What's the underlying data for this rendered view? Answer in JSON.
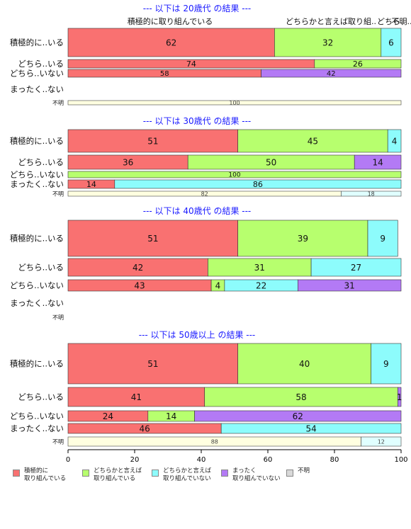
{
  "chart_data": {
    "type": "bar",
    "orientation": "horizontal",
    "stacked": true,
    "xlim": [
      0,
      100
    ],
    "xticks": [
      0,
      20,
      40,
      60,
      80,
      100
    ],
    "grid": false,
    "legend_position": "bottom",
    "series": [
      {
        "name": "積極的に\n取り組んでいる",
        "color": "#f97171"
      },
      {
        "name": "どちらかと言えば\n取り組んでいる",
        "color": "#b7ff6e"
      },
      {
        "name": "どちらかと言えば\n取り組んでいない",
        "color": "#8dfcfc"
      },
      {
        "name": "まったく\n取り組んでいない",
        "color": "#b37af5"
      },
      {
        "name": "不明",
        "color": "#d9d9d9"
      }
    ],
    "panels": [
      {
        "title": "--- 以下は 20歳代 の結果 ---",
        "top_labels": [
          "積極的に取り組んでいる",
          "どちらかと言えば取り組..",
          "どちら..",
          "不明.."
        ],
        "rows": [
          {
            "label": "積極的に..いる",
            "values": [
              62,
              32,
              6,
              0,
              0
            ]
          },
          {
            "label": "どちら..いる",
            "values": [
              74,
              26,
              0,
              0,
              0
            ]
          },
          {
            "label": "どちら..いない",
            "values": [
              58,
              0,
              0,
              42,
              0
            ]
          },
          {
            "label": "まったく..ない",
            "values": [
              0,
              0,
              0,
              0,
              0
            ]
          }
        ],
        "unknown": {
          "label": "不明",
          "values": [
            0,
            100
          ]
        }
      },
      {
        "title": "--- 以下は 30歳代 の結果 ---",
        "rows": [
          {
            "label": "積極的に..いる",
            "values": [
              51,
              45,
              4,
              0,
              0
            ]
          },
          {
            "label": "どちら..いる",
            "values": [
              36,
              50,
              0,
              14,
              0
            ]
          },
          {
            "label": "どちら..いない",
            "values": [
              0,
              100,
              0,
              0,
              0
            ]
          },
          {
            "label": "まったく..ない",
            "values": [
              14,
              0,
              86,
              0,
              0
            ]
          }
        ],
        "unknown": {
          "label": "不明",
          "values": [
            0,
            82,
            18
          ]
        }
      },
      {
        "title": "--- 以下は 40歳代 の結果 ---",
        "rows": [
          {
            "label": "積極的に..いる",
            "values": [
              51,
              39,
              9,
              0,
              0
            ]
          },
          {
            "label": "どちら..いる",
            "values": [
              42,
              31,
              27,
              0,
              0
            ]
          },
          {
            "label": "どちら..いない",
            "values": [
              43,
              4,
              22,
              31,
              0
            ]
          },
          {
            "label": "まったく..ない",
            "values": [
              0,
              0,
              0,
              0,
              0
            ]
          }
        ],
        "unknown": {
          "label": "不明",
          "values": []
        }
      },
      {
        "title": "--- 以下は 50歳以上 の結果 ---",
        "rows": [
          {
            "label": "積極的に..いる",
            "values": [
              51,
              40,
              9,
              0,
              0
            ]
          },
          {
            "label": "どちら..いる",
            "values": [
              41,
              58,
              0,
              1,
              0
            ]
          },
          {
            "label": "どちら..いない",
            "values": [
              24,
              14,
              0,
              62,
              0
            ]
          },
          {
            "label": "まったく..ない",
            "values": [
              46,
              0,
              54,
              0,
              0
            ]
          }
        ],
        "unknown": {
          "label": "不明",
          "values": [
            0,
            88,
            12
          ]
        }
      }
    ]
  }
}
